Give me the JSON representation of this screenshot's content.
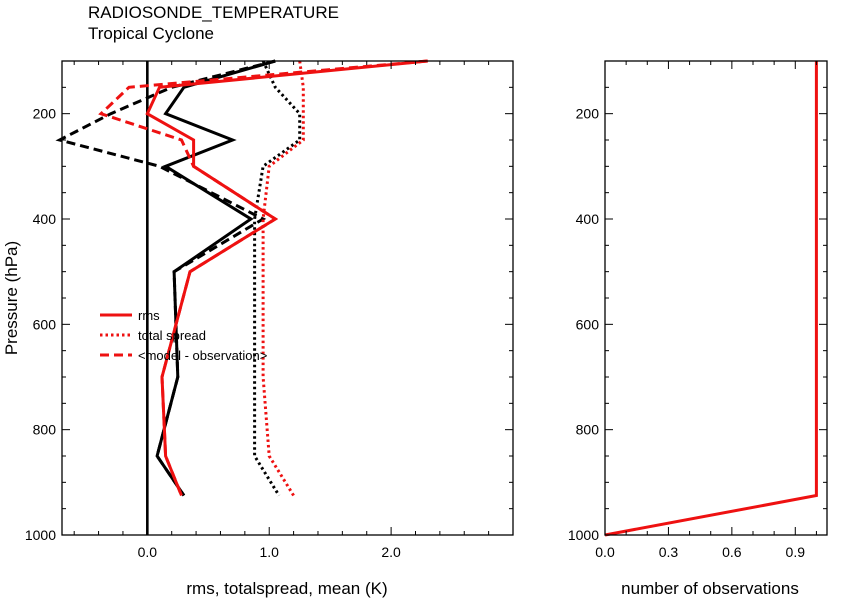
{
  "title": "RADIOSONDE_TEMPERATURE",
  "subtitle": "Tropical Cyclone",
  "colors": {
    "black": "#000000",
    "red": "#ee1111"
  },
  "chart_data": [
    {
      "type": "line",
      "xlabel": "rms, totalspread, mean (K)",
      "ylabel": "Pressure (hPa)",
      "xlim": [
        -0.7,
        3.0
      ],
      "ylim": [
        1000,
        100
      ],
      "x_ticks": [
        "0.0",
        "1.0",
        "2.0"
      ],
      "y_ticks": [
        "200",
        "400",
        "600",
        "800",
        "1000"
      ],
      "legend": {
        "placement": "center-left",
        "entries": [
          "rms",
          "total spread",
          "<model - observation>"
        ]
      },
      "pressure_levels": [
        100,
        150,
        200,
        250,
        300,
        400,
        500,
        700,
        850,
        925
      ],
      "series": [
        {
          "color": "black",
          "style": "solid",
          "metric": "rms",
          "values": [
            1.05,
            0.3,
            0.15,
            0.7,
            0.15,
            0.85,
            0.22,
            0.25,
            0.08,
            0.3
          ]
        },
        {
          "color": "black",
          "style": "dotted",
          "metric": "total spread",
          "values": [
            0.95,
            1.05,
            1.25,
            1.25,
            0.95,
            0.88,
            0.88,
            0.88,
            0.88,
            1.08
          ]
        },
        {
          "color": "black",
          "style": "dashed",
          "metric": "<model - observation>",
          "values": [
            1.05,
            0.2,
            -0.3,
            -0.72,
            0.1,
            0.95,
            0.22,
            0.25,
            0.08,
            0.3
          ]
        },
        {
          "color": "red",
          "style": "solid",
          "metric": "rms",
          "values": [
            2.3,
            0.1,
            0.0,
            0.38,
            0.38,
            1.05,
            0.35,
            0.12,
            0.15,
            0.28
          ]
        },
        {
          "color": "red",
          "style": "dotted",
          "metric": "total spread",
          "values": [
            1.25,
            1.28,
            1.28,
            1.28,
            1.0,
            0.95,
            0.95,
            0.95,
            1.0,
            1.2
          ]
        },
        {
          "color": "red",
          "style": "dashed",
          "metric": "<model - observation>",
          "values": [
            2.3,
            -0.15,
            -0.38,
            0.28,
            0.38,
            1.05,
            0.35,
            0.12,
            0.15,
            0.28
          ]
        }
      ],
      "zero_line": 0.0
    },
    {
      "type": "line",
      "xlabel": "number of observations",
      "ylabel": "",
      "xlim": [
        0,
        1.05
      ],
      "ylim": [
        1000,
        100
      ],
      "x_ticks": [
        "0.0",
        "0.3",
        "0.6",
        "0.9"
      ],
      "y_ticks": [
        "200",
        "400",
        "600",
        "800",
        "1000"
      ],
      "series": [
        {
          "color": "red",
          "style": "solid",
          "points": [
            [
              0.0,
              1000
            ],
            [
              1.0,
              925
            ],
            [
              1.0,
              100
            ]
          ]
        }
      ]
    }
  ]
}
